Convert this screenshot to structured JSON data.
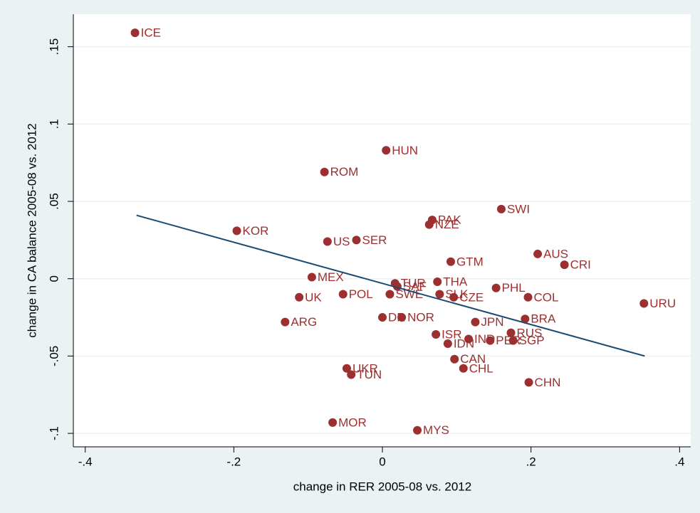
{
  "chart_data": {
    "type": "scatter",
    "x_label": "change in RER 2005-08 vs. 2012",
    "y_label": "change in CA balance 2005-08 vs. 2012",
    "labels": [
      "ICE",
      "HUN",
      "ROM",
      "SWI",
      "PAK",
      "NZE",
      "KOR",
      "US",
      "SER",
      "GTM",
      "AUS",
      "CRI",
      "MEX",
      "THA",
      "TUR",
      "SAF",
      "PHL",
      "UK",
      "POL",
      "SWE",
      "SLK",
      "CZE",
      "COL",
      "URU",
      "DR",
      "NOR",
      "ARG",
      "JPN",
      "BRA",
      "ISR",
      "IND",
      "RUS",
      "PER",
      "SGP",
      "IDN",
      "CAN",
      "UKR",
      "CHL",
      "TUN",
      "CHN",
      "MOR",
      "MYS"
    ],
    "x": [
      -0.333,
      0.005,
      -0.078,
      0.16,
      0.067,
      0.063,
      -0.196,
      -0.074,
      -0.035,
      0.092,
      0.209,
      0.245,
      -0.095,
      0.074,
      0.017,
      0.02,
      0.153,
      -0.112,
      -0.053,
      0.01,
      0.077,
      0.096,
      0.196,
      0.352,
      0.0,
      0.026,
      -0.131,
      0.125,
      0.192,
      0.072,
      0.116,
      0.173,
      0.145,
      0.176,
      0.088,
      0.097,
      -0.048,
      0.109,
      -0.042,
      0.197,
      -0.067,
      0.047
    ],
    "y": [
      0.159,
      0.083,
      0.069,
      0.045,
      0.038,
      0.035,
      0.031,
      0.024,
      0.025,
      0.011,
      0.016,
      0.009,
      0.001,
      -0.002,
      -0.003,
      -0.005,
      -0.006,
      -0.012,
      -0.01,
      -0.01,
      -0.01,
      -0.012,
      -0.012,
      -0.016,
      -0.025,
      -0.025,
      -0.028,
      -0.028,
      -0.026,
      -0.036,
      -0.039,
      -0.035,
      -0.04,
      -0.04,
      -0.042,
      -0.052,
      -0.058,
      -0.058,
      -0.062,
      -0.067,
      -0.093,
      -0.098
    ],
    "color": "#9c2f2f",
    "fit_line": {
      "x": [
        -0.331,
        0.353
      ],
      "y": [
        0.041,
        -0.05
      ],
      "color": "#1a4a72"
    },
    "xlim": [
      -0.416,
      0.415
    ],
    "ylim": [
      -0.1087,
      0.171
    ],
    "xticks": [
      {
        "value": -0.4,
        "label": "-.4"
      },
      {
        "value": -0.2,
        "label": "-.2"
      },
      0,
      {
        "value": 0.2,
        "label": ".2"
      },
      {
        "value": 0.4,
        "label": ".4"
      }
    ],
    "yticks": [
      {
        "value": -0.1,
        "label": "-.1"
      },
      {
        "value": -0.05,
        "label": "-.05"
      },
      0,
      {
        "value": 0.05,
        "label": ".05"
      },
      {
        "value": 0.1,
        "label": ".1"
      },
      {
        "value": 0.15,
        "label": ".15"
      }
    ],
    "grid": true
  }
}
